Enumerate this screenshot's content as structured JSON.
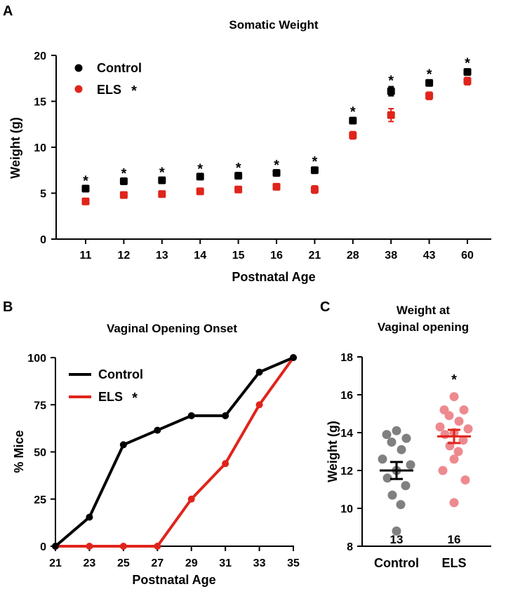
{
  "chart_data": [
    {
      "panel": "A",
      "type": "scatter",
      "title": "Somatic Weight",
      "xlabel": "Postnatal Age",
      "ylabel": "Weight (g)",
      "categories": [
        "11",
        "12",
        "13",
        "14",
        "15",
        "16",
        "21",
        "28",
        "38",
        "43",
        "60"
      ],
      "ylim": [
        0,
        20
      ],
      "yticks": [
        0,
        5,
        10,
        15,
        20
      ],
      "series": [
        {
          "name": "Control",
          "color": "#000000",
          "values": [
            5.5,
            6.3,
            6.4,
            6.8,
            6.9,
            7.2,
            7.5,
            12.9,
            16.1,
            17.0,
            18.2
          ],
          "errors": [
            0.2,
            0.2,
            0.2,
            0.2,
            0.2,
            0.2,
            0.3,
            0.3,
            0.5,
            0.3,
            0.3
          ]
        },
        {
          "name": "ELS",
          "color": "#e0241b",
          "values": [
            4.1,
            4.8,
            4.9,
            5.2,
            5.4,
            5.7,
            5.4,
            11.3,
            13.5,
            15.6,
            17.2
          ],
          "errors": [
            0.2,
            0.2,
            0.2,
            0.2,
            0.2,
            0.2,
            0.4,
            0.4,
            0.7,
            0.4,
            0.4
          ]
        }
      ],
      "significance": [
        "*",
        "*",
        "*",
        "*",
        "*",
        "*",
        "*",
        "*",
        "*",
        "*",
        "*"
      ],
      "legend": {
        "items": [
          "Control",
          "ELS"
        ],
        "els_mark": "*"
      }
    },
    {
      "panel": "B",
      "type": "line",
      "title": "Vaginal Opening Onset",
      "xlabel": "Postnatal Age",
      "ylabel": "% Mice",
      "x": [
        21,
        23,
        25,
        27,
        29,
        31,
        33,
        35
      ],
      "xticks": [
        21,
        23,
        25,
        27,
        29,
        31,
        33,
        35
      ],
      "xlim": [
        21,
        35
      ],
      "ylim": [
        0,
        100
      ],
      "yticks": [
        0,
        25,
        50,
        75,
        100
      ],
      "series": [
        {
          "name": "Control",
          "color": "#000000",
          "values": [
            0,
            15.4,
            53.8,
            61.5,
            69.2,
            69.2,
            92.3,
            100
          ]
        },
        {
          "name": "ELS",
          "color": "#e0241b",
          "values": [
            0,
            0,
            0,
            0,
            25,
            43.8,
            75,
            100
          ]
        }
      ],
      "legend": {
        "items": [
          "Control",
          "ELS"
        ],
        "els_mark": "*"
      }
    },
    {
      "panel": "C",
      "type": "scatter",
      "title": "Weight at",
      "title2": "Vaginal opening",
      "xlabel": "",
      "ylabel": "Weight (g)",
      "categories": [
        "Control",
        "ELS"
      ],
      "ylim": [
        8,
        18
      ],
      "yticks": [
        8,
        10,
        12,
        14,
        16,
        18
      ],
      "groups": [
        {
          "name": "Control",
          "color": "#808080",
          "mean": 12.0,
          "sem": 0.45,
          "n": "13",
          "points": [
            14.1,
            13.9,
            13.7,
            13.5,
            13.1,
            12.6,
            12.3,
            12.0,
            11.6,
            11.2,
            10.7,
            10.2,
            8.8
          ]
        },
        {
          "name": "ELS",
          "color": "#ed8a8f",
          "mean": 13.8,
          "sem": 0.35,
          "n": "16",
          "points": [
            15.9,
            15.2,
            15.2,
            14.9,
            14.6,
            14.3,
            14.2,
            14.0,
            13.9,
            13.6,
            13.3,
            13.0,
            12.6,
            12.0,
            11.5,
            10.3
          ]
        }
      ],
      "significance": "*"
    }
  ],
  "panel_labels": {
    "a": "A",
    "b": "B",
    "c": "C"
  }
}
